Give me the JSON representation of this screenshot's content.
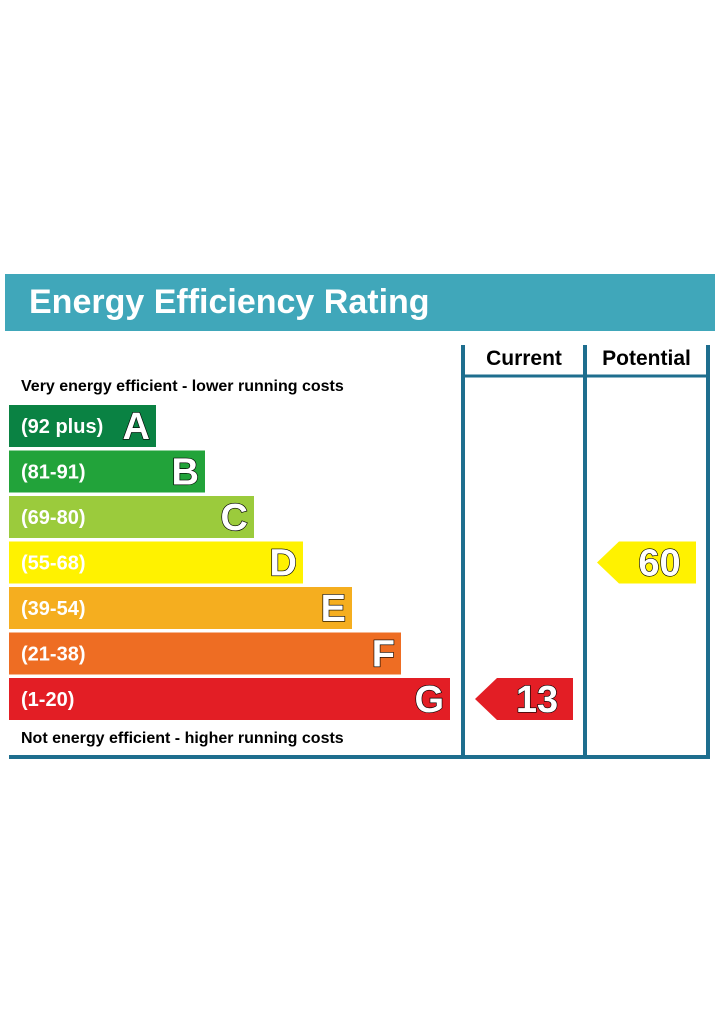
{
  "chart_data": {
    "type": "bar",
    "title": "Energy Efficiency Rating",
    "top_note": "Very energy efficient - lower running costs",
    "bottom_note": "Not energy efficient - higher running costs",
    "columns": [
      "Current",
      "Potential"
    ],
    "bands": [
      {
        "letter": "A",
        "range": "(92 plus)",
        "min": 92,
        "max": 100,
        "color": "#0a8243"
      },
      {
        "letter": "B",
        "range": "(81-91)",
        "min": 81,
        "max": 91,
        "color": "#22a33a"
      },
      {
        "letter": "C",
        "range": "(69-80)",
        "min": 69,
        "max": 80,
        "color": "#9bcb3c"
      },
      {
        "letter": "D",
        "range": "(55-68)",
        "min": 55,
        "max": 68,
        "color": "#fff200"
      },
      {
        "letter": "E",
        "range": "(39-54)",
        "min": 39,
        "max": 54,
        "color": "#f5ae1f"
      },
      {
        "letter": "F",
        "range": "(21-38)",
        "min": 21,
        "max": 38,
        "color": "#ee6d23"
      },
      {
        "letter": "G",
        "range": "(1-20)",
        "min": 1,
        "max": 20,
        "color": "#e31e25"
      }
    ],
    "current": {
      "value": "13",
      "band": "G",
      "color": "#e31e25"
    },
    "potential": {
      "value": "60",
      "band": "D",
      "color": "#fff200"
    },
    "frame_color": "#1e6e8e"
  }
}
